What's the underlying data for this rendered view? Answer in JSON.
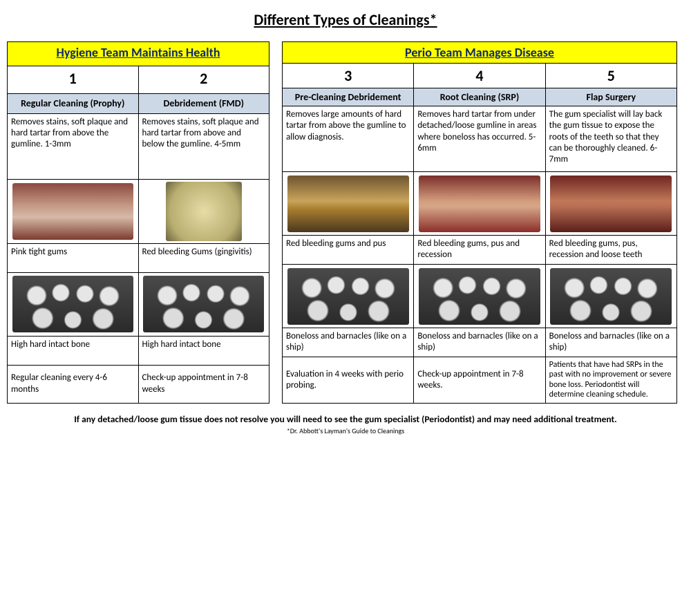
{
  "title": "Different Types of Cleanings*",
  "hygiene": {
    "team_header": "Hygiene Team Maintains Health",
    "cols": [
      {
        "num": "1",
        "name": "Regular Cleaning (Prophy)",
        "desc": "Removes stains, soft plaque and hard tartar from above the gumline. 1-3mm",
        "gum": "Pink tight gums",
        "bone": "High hard intact bone",
        "freq": "Regular cleaning every 4-6 months"
      },
      {
        "num": "2",
        "name": "Debridement (FMD)",
        "desc": "Removes stains, soft plaque and hard tartar from above and below the gumline.  4-5mm",
        "gum": "Red bleeding Gums (gingivitis)",
        "bone": "High hard intact bone",
        "freq": "Check-up appointment in 7-8 weeks"
      }
    ]
  },
  "perio": {
    "team_header": "Perio Team Manages Disease",
    "cols": [
      {
        "num": "3",
        "name": "Pre-Cleaning Debridement",
        "desc": "Removes large amounts of hard tartar from above the gumline to allow diagnosis.",
        "gum": "Red bleeding gums and pus",
        "bone": "Boneloss and barnacles (like on a ship)",
        "freq": "Evaluation in 4 weeks with perio probing."
      },
      {
        "num": "4",
        "name": "Root Cleaning (SRP)",
        "desc": "Removes hard tartar from under detached/loose gumline in areas where boneloss has occurred.      5-6mm",
        "gum": "Red  bleeding gums, pus and recession",
        "bone": "Boneloss and barnacles (like on a ship)",
        "freq": "Check-up appointment in 7-8 weeks."
      },
      {
        "num": "5",
        "name": "Flap Surgery",
        "desc": "The gum specialist will lay back the gum tissue to expose the roots of the teeth so that they can be thoroughly cleaned. 6-7mm",
        "gum": "Red bleeding gums, pus, recession and loose teeth",
        "bone": "Boneloss and barnacles (like on a ship)",
        "freq": "Patients that have had SRPs in the past with no improvement or severe bone loss. Periodontist will determine cleaning schedule."
      }
    ]
  },
  "footnote_main": "If any detached/loose gum tissue does not resolve you will need to see the gum specialist (Periodontist) and may need additional treatment.",
  "footnote_sub": "*Dr. Abbott's Layman's Guide to Cleanings",
  "colors": {
    "header_bg": "#ffff00",
    "header_text": "#0f2a6b",
    "subheader_bg": "#cdd8e6",
    "border": "#000000"
  }
}
